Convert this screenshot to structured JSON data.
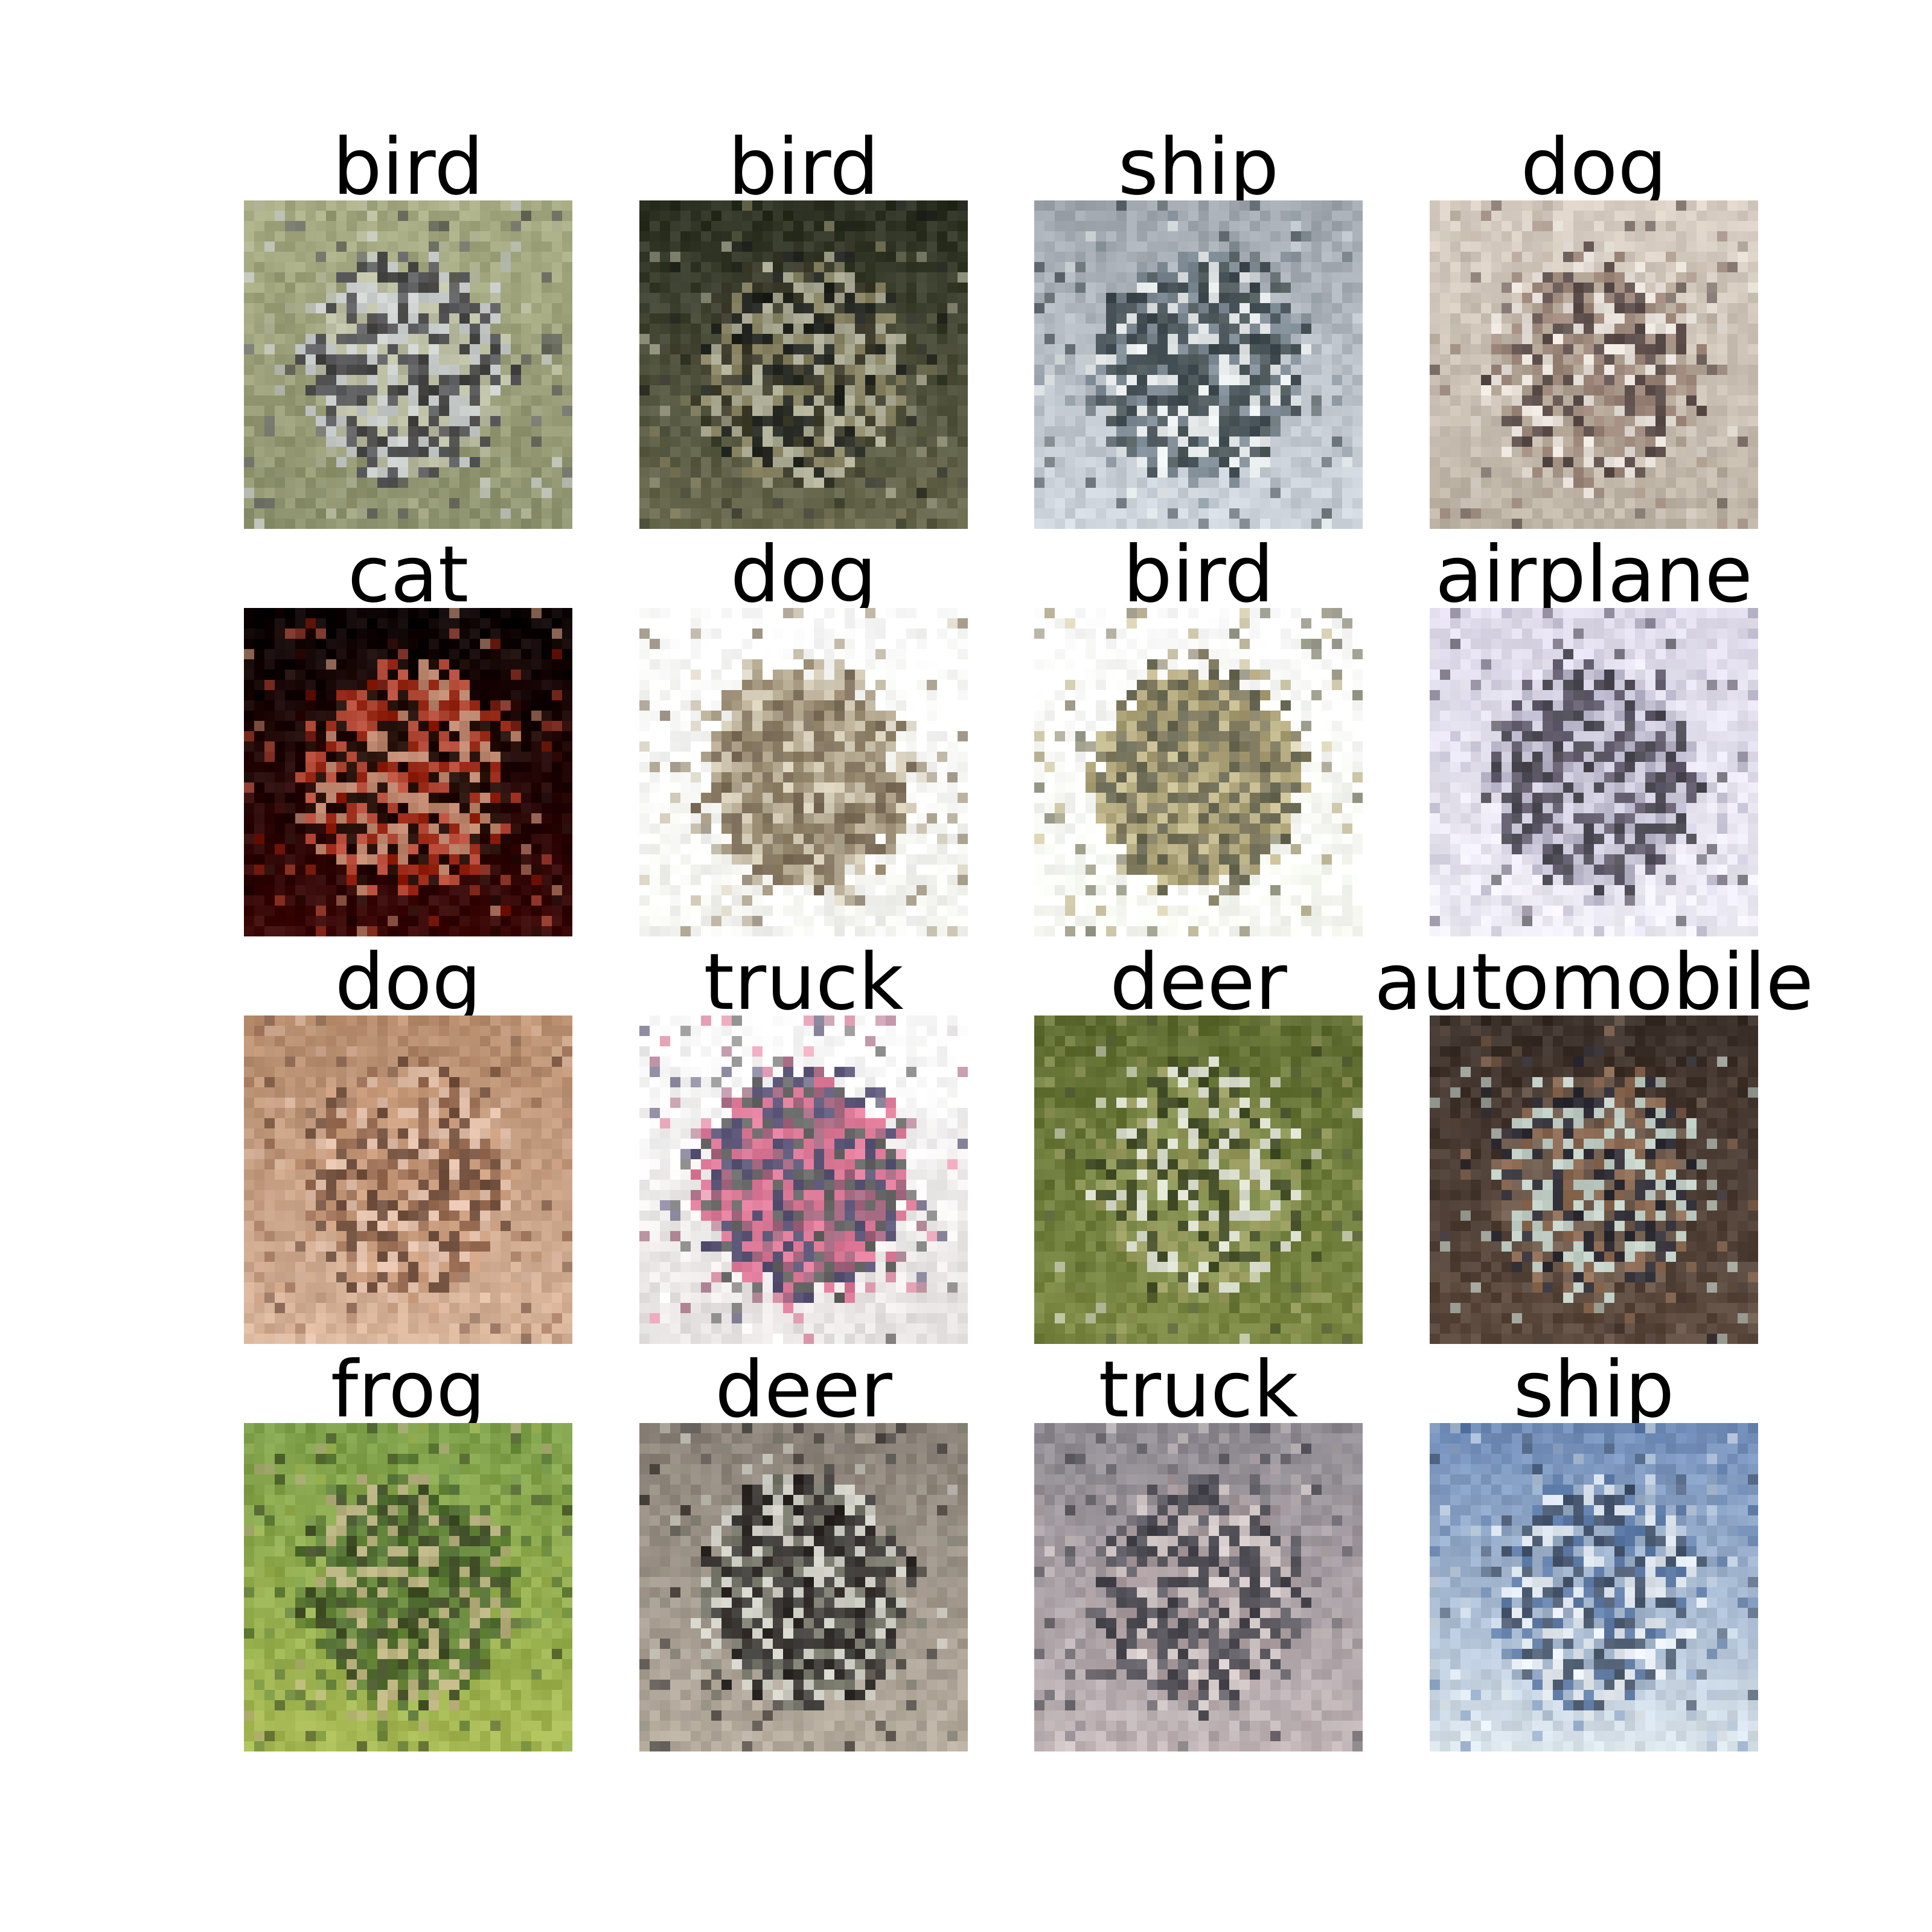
{
  "figure": {
    "grid": {
      "rows": 4,
      "cols": 4
    },
    "tiles": [
      {
        "label": "bird",
        "palette": [
          "#a7ac84",
          "#8e936f",
          "#c6c8b0",
          "#2c2a35",
          "#4b4a5a",
          "#d8dde8"
        ]
      },
      {
        "label": "bird",
        "palette": [
          "#2b3022",
          "#6b6b50",
          "#9a9470",
          "#c9c7b0",
          "#3c3a2b",
          "#1a1c1c"
        ]
      },
      {
        "label": "ship",
        "palette": [
          "#9fa6ae",
          "#cfd6dd",
          "#f3f6f4",
          "#2f3b3d",
          "#6c7b86",
          "#1d2a2f"
        ]
      },
      {
        "label": "dog",
        "palette": [
          "#d9cfc4",
          "#bdb4a6",
          "#f0ebe6",
          "#3b2b2b",
          "#8e7468",
          "#ab9c8c"
        ]
      },
      {
        "label": "cat",
        "palette": [
          "#0b0303",
          "#3a0706",
          "#b52a12",
          "#f0b090",
          "#e6624a",
          "#241008"
        ]
      },
      {
        "label": "dog",
        "palette": [
          "#ffffff",
          "#f6f7f2",
          "#9c8c6e",
          "#6e5b3a",
          "#c7bba1",
          "#57432a"
        ]
      },
      {
        "label": "bird",
        "palette": [
          "#ffffff",
          "#f9fbf4",
          "#8a7c45",
          "#5a5230",
          "#b3a56e",
          "#3b3a1e"
        ]
      },
      {
        "label": "airplane",
        "palette": [
          "#dedaea",
          "#eeecf5",
          "#c9c6d9",
          "#1c1a22",
          "#3a3346",
          "#a9a6bd"
        ]
      },
      {
        "label": "dog",
        "palette": [
          "#b58b6c",
          "#d9b59c",
          "#8a5d44",
          "#e8c7b4",
          "#5b3c2e",
          "#c99a7a"
        ]
      },
      {
        "label": "truck",
        "palette": [
          "#ffffff",
          "#e7e3e2",
          "#d9557e",
          "#8a3a5b",
          "#2a2350",
          "#3a3a3a"
        ]
      },
      {
        "label": "deer",
        "palette": [
          "#5f6d32",
          "#7c8a45",
          "#8e9a59",
          "#3b4427",
          "#a7a66b",
          "#ffffff"
        ]
      },
      {
        "label": "automobile",
        "palette": [
          "#3b302a",
          "#5d4a3e",
          "#a27a5e",
          "#e7fff6",
          "#2a2c3a",
          "#7b6757"
        ]
      },
      {
        "label": "frog",
        "palette": [
          "#7ea04a",
          "#a7b953",
          "#5a7d36",
          "#2c3620",
          "#c4b18f",
          "#3d5a2a"
        ]
      },
      {
        "label": "deer",
        "palette": [
          "#8a8178",
          "#b7ad9f",
          "#0b0808",
          "#2a2a2a",
          "#dfe2da",
          "#6c6f63"
        ]
      },
      {
        "label": "truck",
        "palette": [
          "#8f8a92",
          "#c2b6b8",
          "#4a4a52",
          "#e1d7d4",
          "#2b2b33",
          "#a99a9c"
        ]
      },
      {
        "label": "ship",
        "palette": [
          "#6f8cb8",
          "#d9e3ea",
          "#f2f5f7",
          "#2f3d52",
          "#9fb2c9",
          "#4a6a9b"
        ]
      }
    ]
  }
}
